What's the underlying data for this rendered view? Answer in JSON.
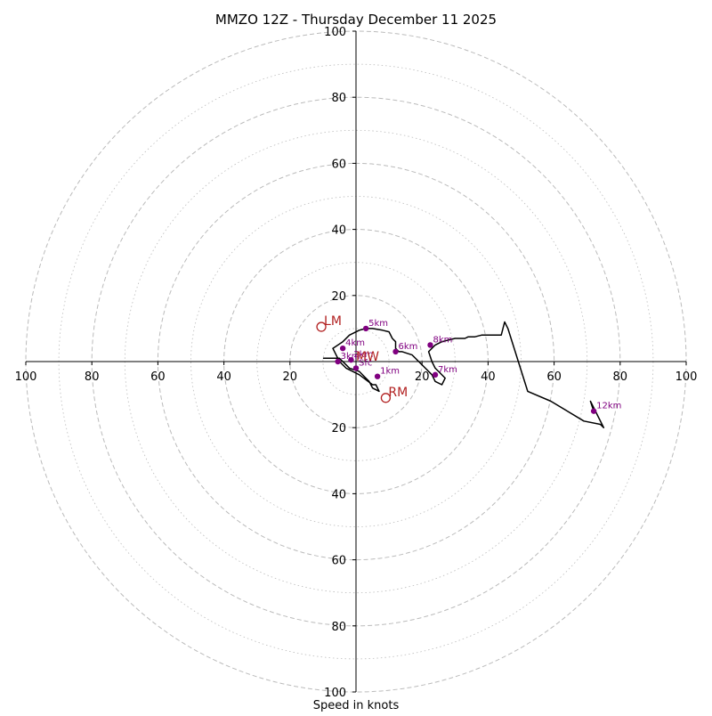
{
  "chart_data": {
    "type": "scatter",
    "title": "MMZO 12Z - Thursday December 11 2025",
    "xlabel": "Speed in knots",
    "rings_major": [
      20,
      40,
      60,
      80,
      100
    ],
    "rings_minor": [
      10,
      30,
      50,
      70,
      90
    ],
    "range": 100,
    "tick_labels": {
      "left": [
        "100",
        "80",
        "60",
        "40",
        "20"
      ],
      "right": [
        "20",
        "40",
        "60",
        "80",
        "100"
      ],
      "top": [
        "100",
        "80",
        "60",
        "40",
        "20"
      ],
      "bottom": [
        "20",
        "40",
        "60",
        "80",
        "100"
      ]
    },
    "grid": true,
    "colors": {
      "hodograph_line": "#000000",
      "height_points": "#800080",
      "storm_motion": "#b22222",
      "grid": "#bbbbbb",
      "axes": "#000000"
    },
    "hodograph": {
      "u": [
        -10,
        -6,
        -5,
        -3,
        -2,
        1,
        3,
        4,
        5,
        7,
        6,
        5,
        1,
        -1,
        -3,
        -5,
        -7,
        -4,
        -2,
        1,
        3,
        5,
        8,
        10,
        11,
        12,
        12,
        13,
        14,
        17,
        19,
        21,
        23,
        24,
        26,
        27,
        25,
        24,
        23,
        22,
        24,
        26,
        30,
        33,
        34,
        36,
        38,
        44,
        45,
        46,
        52,
        59,
        64,
        69,
        74,
        75,
        71,
        72
      ],
      "v": [
        1,
        1,
        1,
        -1,
        -2,
        -3,
        -5,
        -6,
        -8,
        -9,
        -7,
        -7,
        -4,
        -3,
        -2,
        0,
        4,
        6,
        8,
        9.5,
        10,
        10,
        9.5,
        9,
        7,
        6,
        4,
        3,
        3,
        2,
        0,
        -2,
        -4,
        -6,
        -7,
        -5,
        -3,
        -2,
        0,
        3,
        5,
        6,
        7,
        7,
        7.5,
        7.5,
        8,
        8,
        12,
        10,
        -9,
        -12,
        -15,
        -18,
        -19,
        -20,
        -12,
        -15
      ]
    },
    "height_points": [
      {
        "label": "Sfc",
        "u": 0,
        "v": -2
      },
      {
        "label": "1km",
        "u": 6.5,
        "v": -4.5
      },
      {
        "label": "2km",
        "u": -1.5,
        "v": 0.5
      },
      {
        "label": "3km",
        "u": -5.5,
        "v": 0
      },
      {
        "label": "4km",
        "u": -4,
        "v": 4
      },
      {
        "label": "5km",
        "u": 3,
        "v": 10
      },
      {
        "label": "6km",
        "u": 12,
        "v": 3
      },
      {
        "label": "7km",
        "u": 24,
        "v": -4
      },
      {
        "label": "8km",
        "u": 22.5,
        "v": 5
      },
      {
        "label": "12km",
        "u": 72,
        "v": -15
      }
    ],
    "storm_motion": [
      {
        "label": "LM",
        "u": -10.5,
        "v": 10.5
      },
      {
        "label": "RM",
        "u": 9,
        "v": -11
      }
    ],
    "mean_wind_label": "MW"
  }
}
